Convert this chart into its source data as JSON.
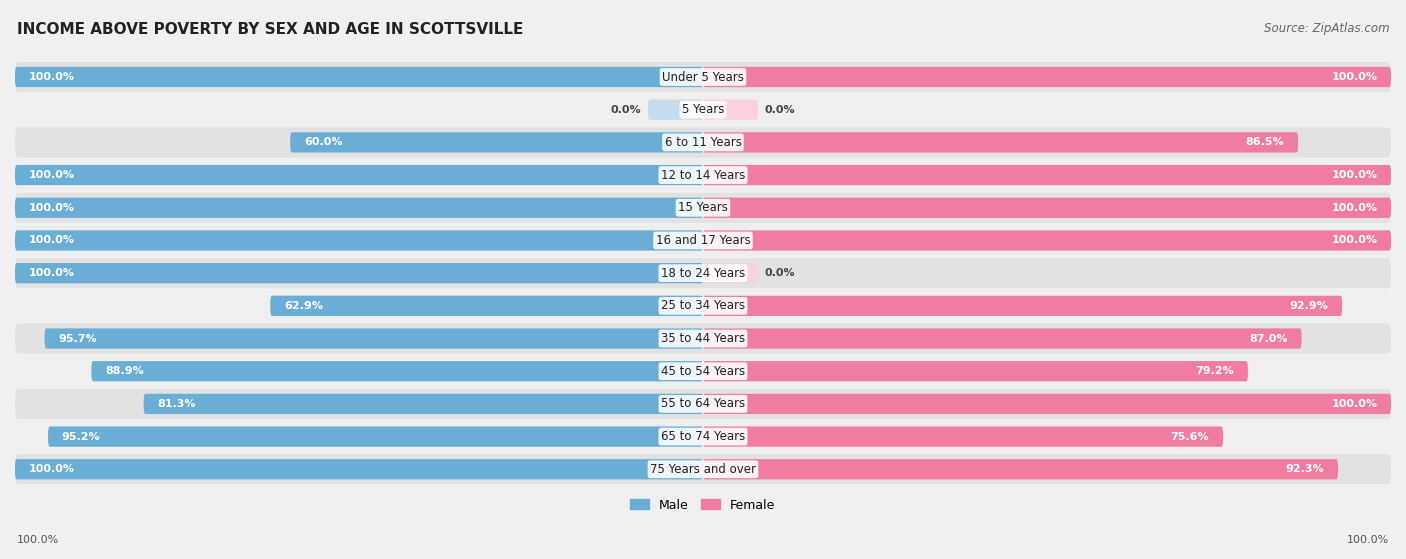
{
  "title": "INCOME ABOVE POVERTY BY SEX AND AGE IN SCOTTSVILLE",
  "source": "Source: ZipAtlas.com",
  "categories": [
    "Under 5 Years",
    "5 Years",
    "6 to 11 Years",
    "12 to 14 Years",
    "15 Years",
    "16 and 17 Years",
    "18 to 24 Years",
    "25 to 34 Years",
    "35 to 44 Years",
    "45 to 54 Years",
    "55 to 64 Years",
    "65 to 74 Years",
    "75 Years and over"
  ],
  "male": [
    100.0,
    0.0,
    60.0,
    100.0,
    100.0,
    100.0,
    100.0,
    62.9,
    95.7,
    88.9,
    81.3,
    95.2,
    100.0
  ],
  "female": [
    100.0,
    0.0,
    86.5,
    100.0,
    100.0,
    100.0,
    0.0,
    92.9,
    87.0,
    79.2,
    100.0,
    75.6,
    92.3
  ],
  "male_color": "#6aaed6",
  "female_color": "#f07ca0",
  "male_light_color": "#c6dcef",
  "female_light_color": "#fcd0de",
  "male_label": "Male",
  "female_label": "Female",
  "background_color": "#f0f0f0",
  "row_color_dark": "#e2e2e2",
  "row_color_light": "#efefef",
  "title_fontsize": 11,
  "label_fontsize": 8.5,
  "value_fontsize": 8.0,
  "source_fontsize": 8.5
}
